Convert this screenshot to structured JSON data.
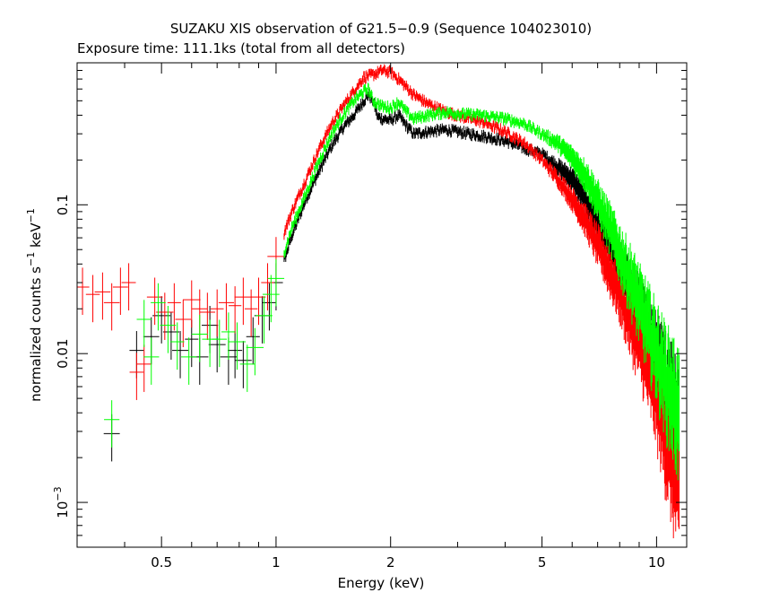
{
  "chart_data": {
    "type": "scatter",
    "title": "SUZAKU XIS observation of G21.5−0.9 (Sequence 104023010)",
    "subtitle": "Exposure time: 111.1ks (total from all detectors)",
    "xlabel": "Energy (keV)",
    "ylabel_main": "normalized counts s",
    "ylabel_sup1": "−1",
    "ylabel_mid": " keV",
    "ylabel_sup2": "−1",
    "x_scale": "log",
    "y_scale": "log",
    "xlim": [
      0.3,
      12.0
    ],
    "ylim": [
      0.0005,
      0.9
    ],
    "grid": false,
    "x_ticks": [
      {
        "value": 0.5,
        "label": "0.5"
      },
      {
        "value": 1,
        "label": "1"
      },
      {
        "value": 2,
        "label": "2"
      },
      {
        "value": 5,
        "label": "5"
      },
      {
        "value": 10,
        "label": "10"
      }
    ],
    "y_ticks": [
      {
        "value": 0.001,
        "label": "10",
        "sup": "−3"
      },
      {
        "value": 0.01,
        "label": "0.01"
      },
      {
        "value": 0.1,
        "label": "0.1"
      }
    ],
    "series": [
      {
        "color": "#000000",
        "points": [
          [
            0.37,
            0.0029
          ],
          [
            0.43,
            0.0105
          ],
          [
            0.47,
            0.013
          ],
          [
            0.5,
            0.018
          ],
          [
            0.53,
            0.014
          ],
          [
            0.56,
            0.0105
          ],
          [
            0.6,
            0.0125
          ],
          [
            0.63,
            0.0095
          ],
          [
            0.67,
            0.0155
          ],
          [
            0.7,
            0.0115
          ],
          [
            0.75,
            0.0095
          ],
          [
            0.78,
            0.0105
          ],
          [
            0.82,
            0.009
          ],
          [
            0.87,
            0.013
          ],
          [
            0.92,
            0.018
          ],
          [
            0.96,
            0.022
          ],
          [
            1.0,
            0.03
          ],
          [
            1.05,
            0.042
          ],
          [
            1.1,
            0.062
          ],
          [
            1.2,
            0.11
          ],
          [
            1.3,
            0.17
          ],
          [
            1.4,
            0.25
          ],
          [
            1.5,
            0.33
          ],
          [
            1.6,
            0.4
          ],
          [
            1.7,
            0.5
          ],
          [
            1.75,
            0.55
          ],
          [
            1.8,
            0.5
          ],
          [
            1.85,
            0.39
          ],
          [
            1.9,
            0.38
          ],
          [
            2.0,
            0.37
          ],
          [
            2.1,
            0.4
          ],
          [
            2.2,
            0.34
          ],
          [
            2.3,
            0.3
          ],
          [
            2.5,
            0.31
          ],
          [
            2.8,
            0.32
          ],
          [
            3.0,
            0.31
          ],
          [
            3.5,
            0.29
          ],
          [
            4.0,
            0.27
          ],
          [
            4.5,
            0.24
          ],
          [
            5.0,
            0.22
          ],
          [
            5.5,
            0.18
          ],
          [
            6.0,
            0.15
          ],
          [
            6.5,
            0.11
          ],
          [
            7.0,
            0.075
          ],
          [
            7.5,
            0.055
          ],
          [
            8.0,
            0.04
          ],
          [
            8.5,
            0.028
          ],
          [
            9.0,
            0.02
          ],
          [
            9.5,
            0.014
          ],
          [
            10.0,
            0.01
          ],
          [
            10.5,
            0.0075
          ],
          [
            11.0,
            0.006
          ],
          [
            11.5,
            0.0045
          ]
        ]
      },
      {
        "color": "#ff0000",
        "points": [
          [
            0.31,
            0.028
          ],
          [
            0.33,
            0.025
          ],
          [
            0.35,
            0.026
          ],
          [
            0.37,
            0.022
          ],
          [
            0.39,
            0.028
          ],
          [
            0.41,
            0.03
          ],
          [
            0.43,
            0.0075
          ],
          [
            0.45,
            0.0085
          ],
          [
            0.48,
            0.024
          ],
          [
            0.51,
            0.019
          ],
          [
            0.54,
            0.022
          ],
          [
            0.57,
            0.017
          ],
          [
            0.6,
            0.023
          ],
          [
            0.63,
            0.02
          ],
          [
            0.66,
            0.019
          ],
          [
            0.7,
            0.02
          ],
          [
            0.74,
            0.022
          ],
          [
            0.78,
            0.021
          ],
          [
            0.82,
            0.024
          ],
          [
            0.86,
            0.02
          ],
          [
            0.9,
            0.024
          ],
          [
            0.95,
            0.03
          ],
          [
            1.0,
            0.045
          ],
          [
            1.05,
            0.065
          ],
          [
            1.1,
            0.09
          ],
          [
            1.2,
            0.15
          ],
          [
            1.3,
            0.24
          ],
          [
            1.4,
            0.35
          ],
          [
            1.5,
            0.46
          ],
          [
            1.6,
            0.58
          ],
          [
            1.7,
            0.72
          ],
          [
            1.8,
            0.75
          ],
          [
            1.9,
            0.8
          ],
          [
            2.0,
            0.78
          ],
          [
            2.1,
            0.7
          ],
          [
            2.2,
            0.62
          ],
          [
            2.3,
            0.55
          ],
          [
            2.5,
            0.48
          ],
          [
            2.8,
            0.42
          ],
          [
            3.0,
            0.4
          ],
          [
            3.5,
            0.36
          ],
          [
            4.0,
            0.31
          ],
          [
            4.5,
            0.26
          ],
          [
            5.0,
            0.2
          ],
          [
            5.5,
            0.15
          ],
          [
            6.0,
            0.11
          ],
          [
            6.5,
            0.08
          ],
          [
            7.0,
            0.055
          ],
          [
            7.5,
            0.038
          ],
          [
            8.0,
            0.027
          ],
          [
            8.5,
            0.018
          ],
          [
            9.0,
            0.013
          ],
          [
            9.5,
            0.009
          ],
          [
            10.0,
            0.006
          ],
          [
            10.5,
            0.0035
          ],
          [
            11.0,
            0.0022
          ],
          [
            11.5,
            0.0015
          ]
        ]
      },
      {
        "color": "#00ff00",
        "points": [
          [
            0.37,
            0.0036
          ],
          [
            0.45,
            0.017
          ],
          [
            0.47,
            0.0095
          ],
          [
            0.49,
            0.022
          ],
          [
            0.52,
            0.0155
          ],
          [
            0.55,
            0.012
          ],
          [
            0.59,
            0.0095
          ],
          [
            0.63,
            0.0135
          ],
          [
            0.67,
            0.0125
          ],
          [
            0.71,
            0.0125
          ],
          [
            0.75,
            0.014
          ],
          [
            0.79,
            0.012
          ],
          [
            0.84,
            0.0085
          ],
          [
            0.88,
            0.011
          ],
          [
            0.93,
            0.018
          ],
          [
            0.97,
            0.025
          ],
          [
            1.0,
            0.032
          ],
          [
            1.05,
            0.048
          ],
          [
            1.1,
            0.07
          ],
          [
            1.2,
            0.12
          ],
          [
            1.3,
            0.2
          ],
          [
            1.4,
            0.3
          ],
          [
            1.5,
            0.4
          ],
          [
            1.6,
            0.5
          ],
          [
            1.7,
            0.58
          ],
          [
            1.75,
            0.6
          ],
          [
            1.8,
            0.5
          ],
          [
            1.9,
            0.46
          ],
          [
            2.0,
            0.45
          ],
          [
            2.1,
            0.49
          ],
          [
            2.2,
            0.42
          ],
          [
            2.3,
            0.38
          ],
          [
            2.5,
            0.4
          ],
          [
            2.8,
            0.42
          ],
          [
            3.0,
            0.41
          ],
          [
            3.5,
            0.4
          ],
          [
            4.0,
            0.38
          ],
          [
            4.5,
            0.35
          ],
          [
            5.0,
            0.3
          ],
          [
            5.5,
            0.26
          ],
          [
            6.0,
            0.21
          ],
          [
            6.5,
            0.16
          ],
          [
            7.0,
            0.11
          ],
          [
            7.5,
            0.075
          ],
          [
            8.0,
            0.05
          ],
          [
            8.5,
            0.035
          ],
          [
            9.0,
            0.024
          ],
          [
            9.5,
            0.017
          ],
          [
            10.0,
            0.012
          ],
          [
            10.5,
            0.0085
          ],
          [
            11.0,
            0.0065
          ],
          [
            11.5,
            0.005
          ]
        ]
      }
    ]
  }
}
